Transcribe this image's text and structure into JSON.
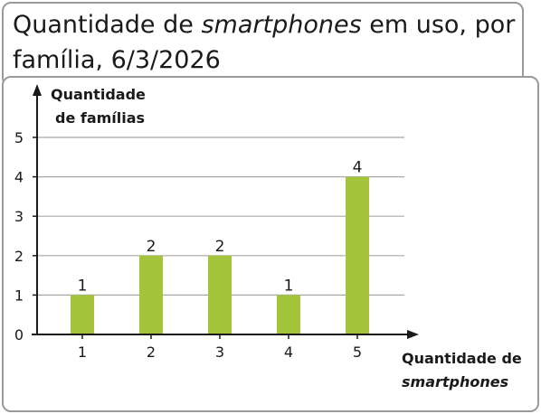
{
  "chart_data": {
    "type": "bar",
    "title_parts": [
      "Quantidade de ",
      "smartphones",
      " em uso, por família, 6/3/2026"
    ],
    "ylabel_lines": [
      "Quantidade",
      "de famílias"
    ],
    "xlabel_lines": [
      "Quantidade de",
      "smartphones"
    ],
    "categories": [
      "1",
      "2",
      "3",
      "4",
      "5"
    ],
    "values": [
      1,
      2,
      2,
      1,
      4
    ],
    "data_labels": [
      "1",
      "2",
      "2",
      "1",
      "4"
    ],
    "yticks": [
      "0",
      "1",
      "2",
      "3",
      "4",
      "5"
    ],
    "ylim": [
      0,
      5
    ],
    "grid": true,
    "bar_color": "#a3c43b"
  }
}
